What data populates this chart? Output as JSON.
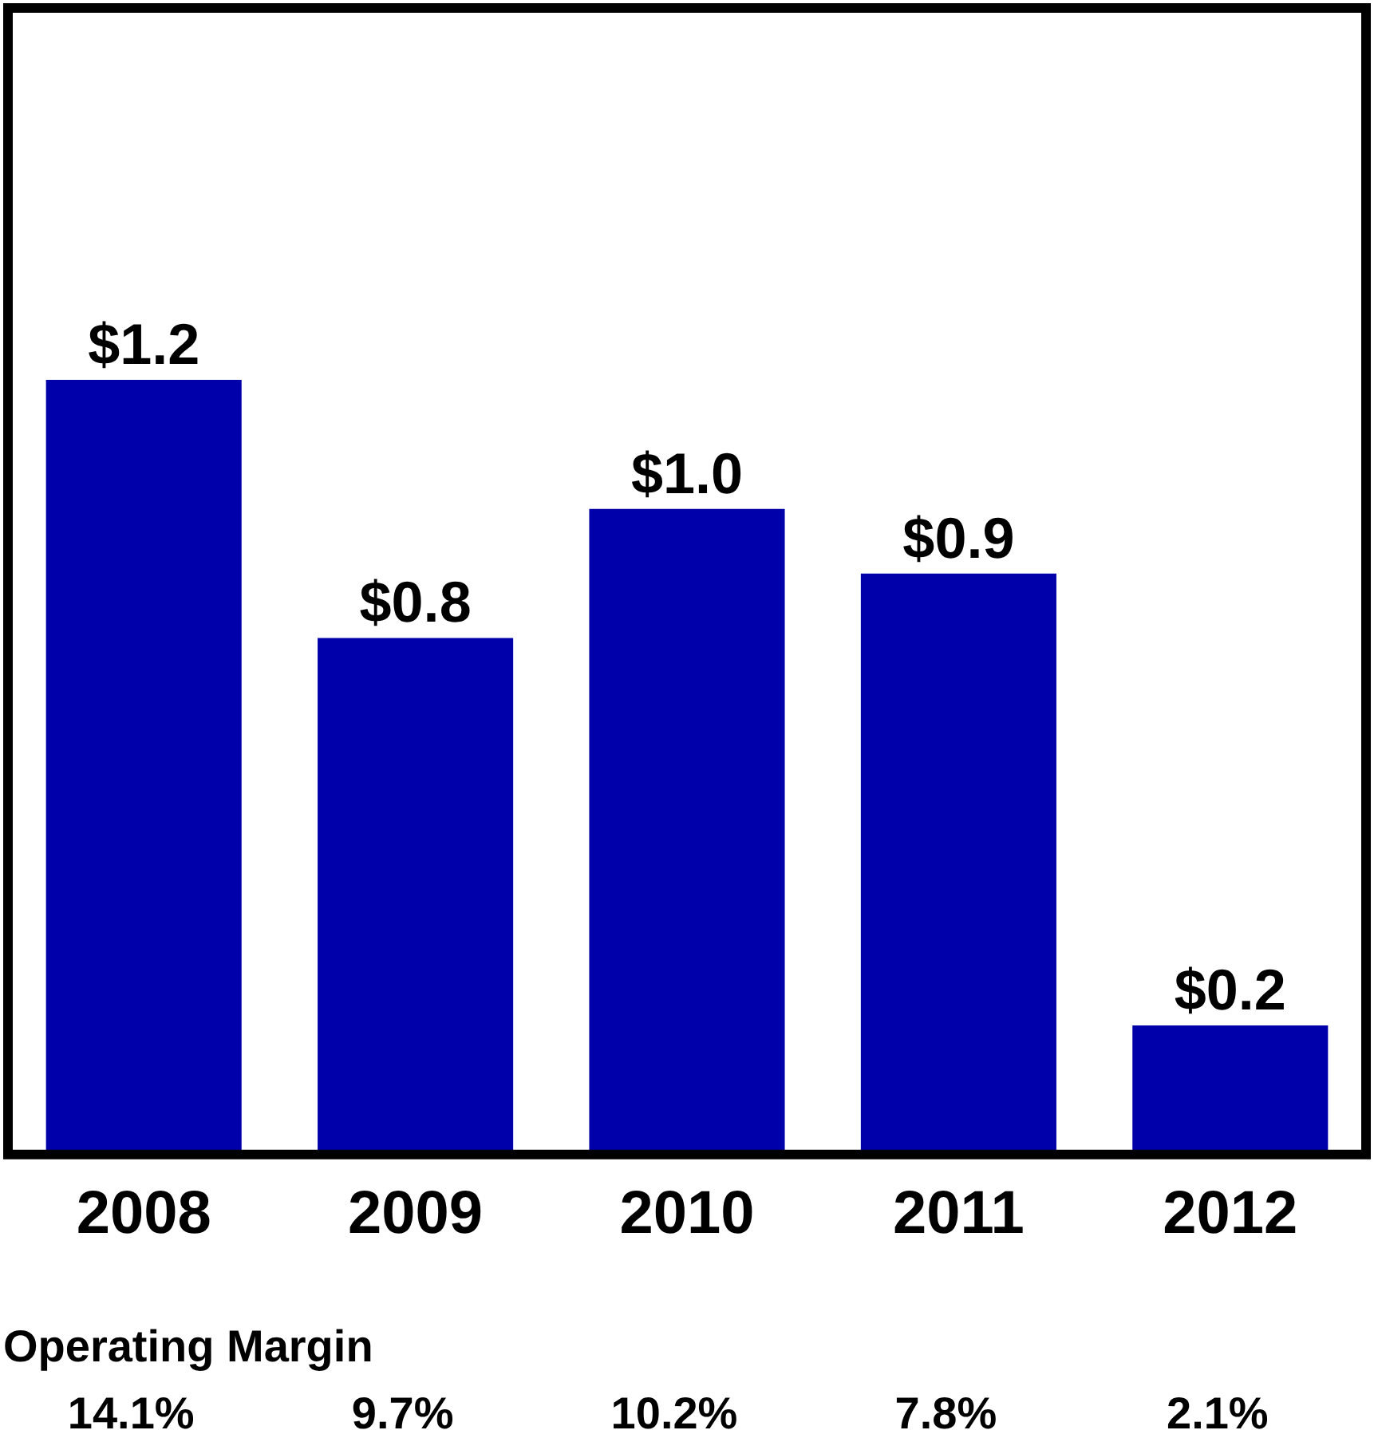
{
  "chart_data": {
    "type": "bar",
    "categories": [
      "2008",
      "2009",
      "2010",
      "2011",
      "2012"
    ],
    "values": [
      1.2,
      0.8,
      1.0,
      0.9,
      0.2
    ],
    "value_labels": [
      "$1.2",
      "$0.8",
      "$1.0",
      "$0.9",
      "$0.2"
    ],
    "color": "#0000aa",
    "annotations": [
      "Operating Margin",
      "14.1%",
      "9.7%",
      "10.2%",
      "7.8%",
      "2.1%"
    ],
    "grid": false,
    "legend": false
  }
}
